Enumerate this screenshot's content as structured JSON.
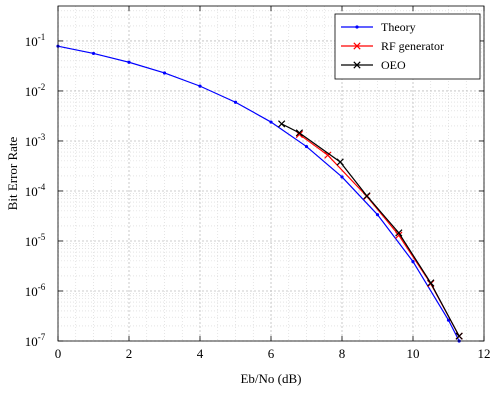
{
  "chart_data": {
    "type": "line",
    "xlabel": "Eb/No (dB)",
    "ylabel": "Bit Error Rate",
    "x_ticks": [
      0,
      2,
      4,
      6,
      8,
      10,
      12
    ],
    "y_ticks": [
      {
        "value": 1e-07,
        "base": "10",
        "exp": "-7"
      },
      {
        "value": 1e-06,
        "base": "10",
        "exp": "-6"
      },
      {
        "value": 1e-05,
        "base": "10",
        "exp": "-5"
      },
      {
        "value": 0.0001,
        "base": "10",
        "exp": "-4"
      },
      {
        "value": 0.001,
        "base": "10",
        "exp": "-3"
      },
      {
        "value": 0.01,
        "base": "10",
        "exp": "-2"
      },
      {
        "value": 0.1,
        "base": "10",
        "exp": "-1"
      }
    ],
    "xlim": [
      0,
      12
    ],
    "ylim": [
      1e-07,
      0.5
    ],
    "y_scale": "log",
    "grid": true,
    "minor_grid": true,
    "legend_position": "top-right",
    "series": [
      {
        "name": "Theory",
        "color": "#0000ff",
        "marker": "dot",
        "x": [
          0,
          1,
          2,
          3,
          4,
          5,
          6,
          7,
          8,
          9,
          10,
          11,
          11.3
        ],
        "y": [
          0.0786,
          0.0563,
          0.0375,
          0.0229,
          0.0125,
          0.00595,
          0.00239,
          0.000773,
          0.000191,
          3.36e-05,
          3.87e-06,
          2.61e-07,
          1e-07
        ]
      },
      {
        "name": "RF generator",
        "color": "#ff0000",
        "marker": "x",
        "x": [
          6.8,
          7.6,
          8.7,
          9.6,
          10.5,
          11.3
        ],
        "y": [
          0.00135,
          0.00052,
          7.8e-05,
          1.3e-05,
          1.4e-06,
          1.25e-07
        ]
      },
      {
        "name": "OEO",
        "color": "#000000",
        "marker": "x",
        "x": [
          6.3,
          6.8,
          7.95,
          8.7,
          9.6,
          10.5,
          11.3
        ],
        "y": [
          0.0022,
          0.00145,
          0.00038,
          8e-05,
          1.45e-05,
          1.45e-06,
          1.25e-07
        ]
      }
    ]
  }
}
